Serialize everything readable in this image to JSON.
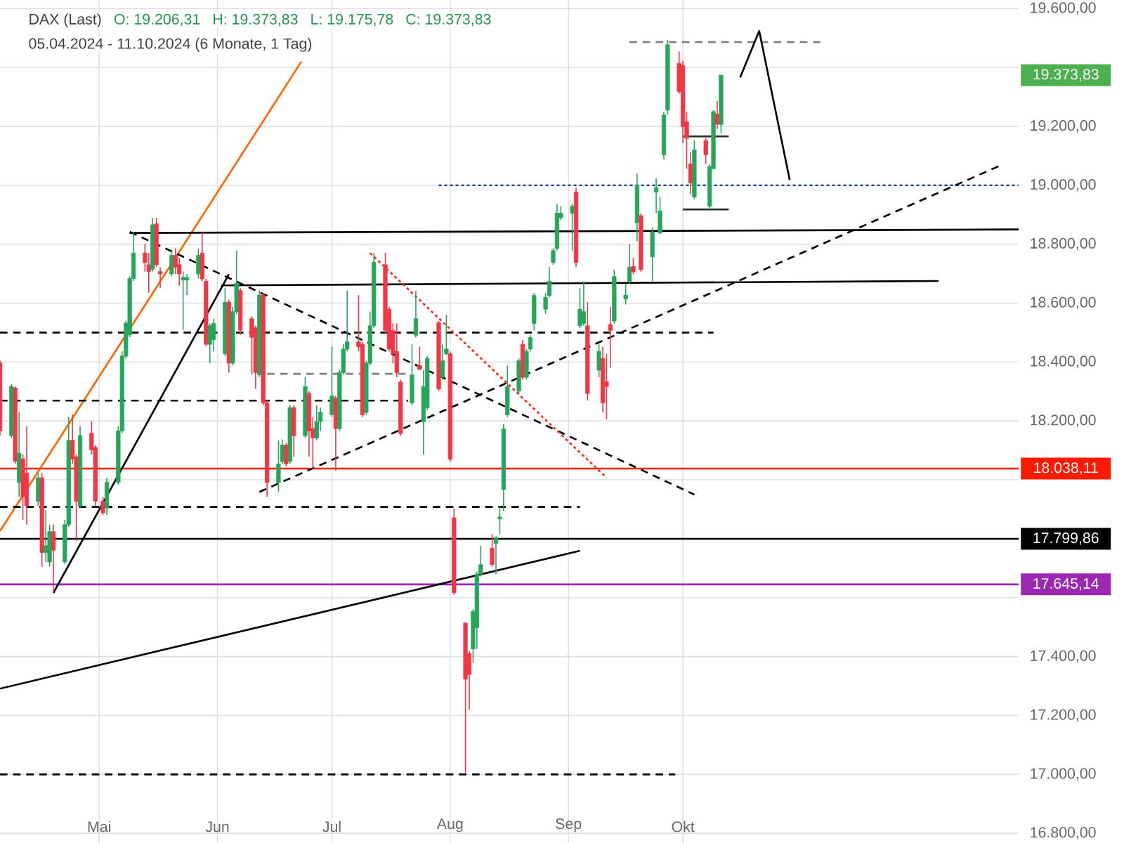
{
  "chart_data": {
    "type": "candlestick",
    "title": "DAX (Last)",
    "subtitle": "05.04.2024 - 11.10.2024  (6 Monate, 1 Tag)",
    "annotations": [
      "O: 19.206,31",
      "H: 19.373,83",
      "L: 19.175,78",
      "C: 19.373,83",
      "19.373,83"
    ],
    "x": [
      "2024-04-05",
      "2024-04-08",
      "2024-04-09",
      "2024-04-10",
      "2024-04-11",
      "2024-04-12",
      "2024-04-15",
      "2024-04-16",
      "2024-04-17",
      "2024-04-18",
      "2024-04-19",
      "2024-04-22",
      "2024-04-23",
      "2024-04-24",
      "2024-04-25",
      "2024-04-26",
      "2024-04-29",
      "2024-04-30",
      "2024-05-02",
      "2024-05-03",
      "2024-05-06",
      "2024-05-07",
      "2024-05-08",
      "2024-05-09",
      "2024-05-10",
      "2024-05-13",
      "2024-05-14",
      "2024-05-15",
      "2024-05-16",
      "2024-05-17",
      "2024-05-20",
      "2024-05-21",
      "2024-05-22",
      "2024-05-23",
      "2024-05-24",
      "2024-05-27",
      "2024-05-28",
      "2024-05-29",
      "2024-05-30",
      "2024-05-31",
      "2024-06-03",
      "2024-06-04",
      "2024-06-05",
      "2024-06-06",
      "2024-06-07",
      "2024-06-10",
      "2024-06-11",
      "2024-06-12",
      "2024-06-13",
      "2024-06-14",
      "2024-06-17",
      "2024-06-18",
      "2024-06-19",
      "2024-06-20",
      "2024-06-21",
      "2024-06-24",
      "2024-06-25",
      "2024-06-26",
      "2024-06-27",
      "2024-06-28",
      "2024-07-01",
      "2024-07-02",
      "2024-07-03",
      "2024-07-04",
      "2024-07-05",
      "2024-07-08",
      "2024-07-09",
      "2024-07-10",
      "2024-07-11",
      "2024-07-12",
      "2024-07-15",
      "2024-07-16",
      "2024-07-17",
      "2024-07-18",
      "2024-07-19",
      "2024-07-22",
      "2024-07-23",
      "2024-07-24",
      "2024-07-25",
      "2024-07-26",
      "2024-07-29",
      "2024-07-30",
      "2024-07-31",
      "2024-08-01",
      "2024-08-02",
      "2024-08-05",
      "2024-08-06",
      "2024-08-07",
      "2024-08-08",
      "2024-08-09",
      "2024-08-12",
      "2024-08-13",
      "2024-08-14",
      "2024-08-15",
      "2024-08-16",
      "2024-08-19",
      "2024-08-20",
      "2024-08-21",
      "2024-08-22",
      "2024-08-23",
      "2024-08-26",
      "2024-08-27",
      "2024-08-28",
      "2024-08-29",
      "2024-08-30",
      "2024-09-02",
      "2024-09-03",
      "2024-09-04",
      "2024-09-05",
      "2024-09-06",
      "2024-09-09",
      "2024-09-10",
      "2024-09-11",
      "2024-09-12",
      "2024-09-13",
      "2024-09-16",
      "2024-09-17",
      "2024-09-18",
      "2024-09-19",
      "2024-09-20",
      "2024-09-23",
      "2024-09-24",
      "2024-09-25",
      "2024-09-26",
      "2024-09-27",
      "2024-09-30",
      "2024-10-01",
      "2024-10-02",
      "2024-10-03",
      "2024-10-04",
      "2024-10-07",
      "2024-10-08",
      "2024-10-09",
      "2024-10-10",
      "2024-10-11"
    ],
    "ohlc": [
      [
        18397,
        18405,
        18150,
        18166
      ],
      [
        18150,
        18325,
        18142,
        18317
      ],
      [
        18312,
        18317,
        18055,
        18063
      ],
      [
        17991,
        18230,
        17943,
        18090
      ],
      [
        18071,
        18086,
        17864,
        17943
      ],
      [
        18023,
        18182,
        17848,
        17912
      ],
      [
        17927,
        18023,
        17912,
        18007
      ],
      [
        18007,
        18023,
        17705,
        17753
      ],
      [
        17753,
        17896,
        17721,
        17776
      ],
      [
        17721,
        17848,
        17705,
        17824
      ],
      [
        17824,
        17848,
        17617,
        17761
      ],
      [
        17721,
        17864,
        17713,
        17848
      ],
      [
        17848,
        18214,
        17840,
        18134
      ],
      [
        18134,
        18222,
        18055,
        18071
      ],
      [
        18078,
        18086,
        17792,
        17927
      ],
      [
        17912,
        18182,
        17904,
        18150
      ],
      [
        18158,
        18198,
        18086,
        18102
      ],
      [
        18110,
        18118,
        17912,
        17927
      ],
      [
        17927,
        17943,
        17880,
        17888
      ],
      [
        17904,
        18007,
        17880,
        17991
      ],
      [
        17991,
        18182,
        17983,
        18166
      ],
      [
        18166,
        18436,
        18158,
        18420
      ],
      [
        18420,
        18540,
        18412,
        18532
      ],
      [
        18492,
        18691,
        18484,
        18683
      ],
      [
        18683,
        18842,
        18675,
        18770
      ],
      [
        18770,
        18802,
        18707,
        18738
      ],
      [
        18730,
        18770,
        18635,
        18707
      ],
      [
        18715,
        18889,
        18707,
        18866
      ],
      [
        18869,
        18889,
        18722,
        18730
      ],
      [
        18707,
        18722,
        18651,
        18699
      ],
      [
        18699,
        18778,
        18691,
        18762
      ],
      [
        18762,
        18786,
        18699,
        18722
      ],
      [
        18730,
        18754,
        18659,
        18699
      ],
      [
        18678,
        18707,
        18508,
        18687
      ],
      [
        18678,
        18699,
        18627,
        18687
      ],
      [
        18699,
        18786,
        18683,
        18762
      ],
      [
        18770,
        18841,
        18674,
        18682
      ],
      [
        18674,
        18682,
        18452,
        18460
      ],
      [
        18460,
        18531,
        18396,
        18523
      ],
      [
        18476,
        18547,
        18436,
        18531
      ],
      [
        18428,
        18651,
        18420,
        18603
      ],
      [
        18603,
        18611,
        18364,
        18396
      ],
      [
        18396,
        18587,
        18388,
        18571
      ],
      [
        18571,
        18778,
        18563,
        18667
      ],
      [
        18643,
        18651,
        18492,
        18508
      ],
      [
        18547,
        18555,
        18357,
        18484
      ],
      [
        18516,
        18523,
        18309,
        18364
      ],
      [
        18357,
        18643,
        18349,
        18627
      ],
      [
        18627,
        18635,
        18253,
        18261
      ],
      [
        18261,
        18269,
        17943,
        17991
      ],
      [
        17991,
        18134,
        17959,
        18054
      ],
      [
        18062,
        18137,
        18054,
        18118
      ],
      [
        18118,
        18126,
        18046,
        18054
      ],
      [
        18062,
        18253,
        18054,
        18245
      ],
      [
        18245,
        18253,
        18078,
        18150
      ],
      [
        18150,
        18349,
        18142,
        18317
      ],
      [
        18293,
        18301,
        18078,
        18166
      ],
      [
        18174,
        18213,
        18038,
        18142
      ],
      [
        18142,
        18253,
        18134,
        18198
      ],
      [
        18198,
        18245,
        18166,
        18229
      ],
      [
        18221,
        18452,
        18213,
        18285
      ],
      [
        18277,
        18285,
        18031,
        18174
      ],
      [
        18174,
        18372,
        18166,
        18364
      ],
      [
        18364,
        18460,
        18357,
        18444
      ],
      [
        18444,
        18643,
        18436,
        18468
      ],
      [
        18468,
        18627,
        18436,
        18452
      ],
      [
        18460,
        18468,
        18213,
        18221
      ],
      [
        18229,
        18404,
        18221,
        18396
      ],
      [
        18396,
        18571,
        18388,
        18523
      ],
      [
        18523,
        18770,
        18516,
        18738
      ],
      [
        18730,
        18770,
        18499,
        18507
      ],
      [
        18579,
        18587,
        18436,
        18444
      ],
      [
        18507,
        18531,
        18396,
        18428
      ],
      [
        18436,
        18531,
        18348,
        18364
      ],
      [
        18332,
        18340,
        18149,
        18157
      ],
      [
        18261,
        18460,
        18253,
        18356
      ],
      [
        18491,
        18642,
        18483,
        18547
      ],
      [
        18388,
        18452,
        18372,
        18375
      ],
      [
        18197,
        18372,
        18086,
        18316
      ],
      [
        18245,
        18420,
        18237,
        18412
      ],
      [
        18534,
        18539,
        18301,
        18309
      ],
      [
        18348,
        18460,
        18340,
        18404
      ],
      [
        18428,
        18560,
        18423,
        18444
      ],
      [
        18428,
        18436,
        18062,
        18070
      ],
      [
        17871,
        17903,
        17609,
        17617
      ],
      [
        17514,
        17514,
        17005,
        17323
      ],
      [
        17410,
        17418,
        17219,
        17339
      ],
      [
        17426,
        17561,
        17378,
        17553
      ],
      [
        17498,
        17688,
        17426,
        17680
      ],
      [
        17680,
        17776,
        17672,
        17712
      ],
      [
        17768,
        17816,
        17704,
        17712
      ],
      [
        17784,
        17808,
        17680,
        17803
      ],
      [
        17868,
        17911,
        17816,
        17874
      ],
      [
        17967,
        18189,
        17895,
        18173
      ],
      [
        18221,
        18388,
        18213,
        18316
      ],
      [
        18301,
        18412,
        18293,
        18404
      ],
      [
        18460,
        18475,
        18340,
        18348
      ],
      [
        18348,
        18444,
        18340,
        18436
      ],
      [
        18444,
        18491,
        18436,
        18483
      ],
      [
        18531,
        18634,
        18507,
        18626
      ],
      [
        18579,
        18634,
        18563,
        18619
      ],
      [
        18626,
        18722,
        18619,
        18674
      ],
      [
        18738,
        18786,
        18730,
        18778
      ],
      [
        18786,
        18937,
        18778,
        18905
      ],
      [
        18889,
        18929,
        18881,
        18905
      ],
      [
        18905,
        18937,
        18778,
        18929
      ],
      [
        18977,
        18992,
        18722,
        18738
      ],
      [
        18523,
        18651,
        18515,
        18579
      ],
      [
        18531,
        18674,
        18523,
        18571
      ],
      [
        18523,
        18603,
        18269,
        18293
      ],
      [
        18372,
        18460,
        18348,
        18436
      ],
      [
        18412,
        18452,
        18229,
        18261
      ],
      [
        18333,
        18428,
        18205,
        18317
      ],
      [
        18527,
        18587,
        18380,
        18507
      ],
      [
        18539,
        18714,
        18531,
        18690
      ],
      [
        18614,
        18666,
        18595,
        18627
      ],
      [
        18674,
        18801,
        18666,
        18722
      ],
      [
        18725,
        18754,
        18698,
        18706
      ],
      [
        18873,
        19040,
        18810,
        19000
      ],
      [
        18897,
        18905,
        18706,
        18714
      ],
      [
        18757,
        18857,
        18674,
        18841
      ],
      [
        18977,
        19024,
        18905,
        18992
      ],
      [
        18838,
        18961,
        18833,
        18913
      ],
      [
        19104,
        19250,
        19088,
        19239
      ],
      [
        19255,
        19493,
        19239,
        19477
      ],
      [
        19414,
        19454,
        19310,
        19318
      ],
      [
        19406,
        19422,
        19143,
        19199
      ],
      [
        19215,
        19250,
        19056,
        19159
      ],
      [
        19072,
        19112,
        18969,
        19008
      ],
      [
        18961,
        19152,
        18953,
        19120
      ],
      [
        19152,
        19160,
        19072,
        19104
      ],
      [
        18929,
        19072,
        18913,
        19064
      ],
      [
        19056,
        19255,
        19056,
        19250
      ],
      [
        19242,
        19286,
        19191,
        19207
      ],
      [
        19206.31,
        19373.83,
        19175.78,
        19373.83
      ]
    ],
    "series": [
      {
        "type": "line",
        "color": "#ff6600",
        "line_style": "solid",
        "x": [
          "2024-04-05",
          "2024-06-23"
        ],
        "values": [
          17826,
          19420
        ]
      },
      {
        "type": "line",
        "color": "#000000",
        "line_style": "solid",
        "x": [
          "2024-04-19",
          "2024-06-04"
        ],
        "values": [
          17616,
          18698
        ]
      },
      {
        "type": "line",
        "color": "#000000",
        "line_style": "solid",
        "x": [
          "2024-04-05",
          "2024-09-04"
        ],
        "values": [
          17291,
          17759
        ]
      },
      {
        "type": "line",
        "color": "#000000",
        "line_style": "dashed",
        "x": [
          "2024-04-05",
          "2024-10-09"
        ],
        "values": [
          18500,
          18500
        ]
      },
      {
        "type": "line",
        "color": "#1a3a9c",
        "line_style": "dotted",
        "x": [
          "2024-07-29",
          "2024-12-28"
        ],
        "values": [
          19000,
          19000
        ]
      },
      {
        "type": "line",
        "color": "#808080",
        "line_style": "dashed",
        "x": [
          "2024-09-17",
          "2024-11-06"
        ],
        "values": [
          19486,
          19486
        ]
      },
      {
        "type": "line",
        "color": "#000000",
        "line_style": "solid",
        "x": [
          "2024-05-09",
          "2024-12-28"
        ],
        "values": [
          18838,
          18850
        ]
      },
      {
        "type": "line",
        "color": "#000000",
        "line_style": "solid",
        "x": [
          "2024-06-02",
          "2024-12-07"
        ],
        "values": [
          18660,
          18675
        ]
      },
      {
        "type": "line",
        "color": "#000000",
        "line_style": "dashed",
        "x": [
          "2024-05-09",
          "2024-10-04"
        ],
        "values": [
          18842,
          17950
        ]
      },
      {
        "type": "line",
        "color": "#ff2a1a",
        "line_style": "dotted",
        "x": [
          "2024-07-11",
          "2024-09-11"
        ],
        "values": [
          18770,
          18007
        ]
      },
      {
        "type": "line",
        "color": "#000000",
        "line_style": "dashed",
        "x": [
          "2024-06-12",
          "2024-12-23"
        ],
        "values": [
          17959,
          19066
        ]
      },
      {
        "type": "line",
        "color": "#000000",
        "line_style": "dashed",
        "x": [
          "2024-04-05",
          "2024-07-21"
        ],
        "values": [
          18269,
          18269
        ]
      },
      {
        "type": "line",
        "color": "#808080",
        "line_style": "dashed",
        "x": [
          "2024-06-14",
          "2024-07-21"
        ],
        "values": [
          18360,
          18360
        ]
      },
      {
        "type": "line",
        "color": "#000000",
        "line_style": "dashed",
        "x": [
          "2024-04-05",
          "2024-09-04"
        ],
        "values": [
          17908,
          17908
        ]
      },
      {
        "type": "line",
        "color": "#000000",
        "line_style": "dashed",
        "x": [
          "2024-04-05",
          "2024-09-29"
        ],
        "values": [
          17000,
          17000
        ]
      },
      {
        "type": "line",
        "color": "#303030",
        "line_style": "solid",
        "x": [
          "2024-10-01",
          "2024-10-13"
        ],
        "values": [
          19166,
          19166
        ]
      },
      {
        "type": "line",
        "color": "#303030",
        "line_style": "solid",
        "x": [
          "2024-10-01",
          "2024-10-13"
        ],
        "values": [
          18918,
          18918
        ]
      },
      {
        "type": "line",
        "color": "#000000",
        "line_style": "solid",
        "x": [
          "2024-10-16",
          "2024-10-21",
          "2024-10-29"
        ],
        "values": [
          19366,
          19524,
          19018
        ]
      }
    ],
    "ref_lines": [
      {
        "axis": "y",
        "value": 18038.11,
        "label": "18.038,11",
        "color": "#ff1a00",
        "line_style": "solid"
      },
      {
        "axis": "y",
        "value": 17799.86,
        "label": "17.799,86",
        "color": "#000000",
        "line_style": "solid"
      },
      {
        "axis": "y",
        "value": 17645.14,
        "label": "17.645,14",
        "color": "#9c27b0",
        "line_style": "solid"
      }
    ],
    "xlim": [
      "2024-04-05",
      "2024-12-28"
    ],
    "xticks": [
      {
        "value": "2024-05-01",
        "label": "Mai"
      },
      {
        "value": "2024-06-01",
        "label": "Jun"
      },
      {
        "value": "2024-07-01",
        "label": "Jul"
      },
      {
        "value": "2024-08-01",
        "label": "Aug"
      },
      {
        "value": "2024-09-01",
        "label": "Sep"
      },
      {
        "value": "2024-10-01",
        "label": "Okt"
      }
    ],
    "ylim": [
      16767,
      19629
    ],
    "yticks": [
      {
        "value": 16800,
        "label": "16.800,00"
      },
      {
        "value": 17000,
        "label": "17.000,00"
      },
      {
        "value": 17200,
        "label": "17.200,00"
      },
      {
        "value": 17400,
        "label": "17.400,00"
      },
      {
        "value": 17600,
        "label": null
      },
      {
        "value": 17800,
        "label": null
      },
      {
        "value": 18000,
        "label": null
      },
      {
        "value": 18200,
        "label": "18.200,00"
      },
      {
        "value": 18400,
        "label": "18.400,00"
      },
      {
        "value": 18600,
        "label": "18.600,00"
      },
      {
        "value": 18800,
        "label": "18.800,00"
      },
      {
        "value": 19000,
        "label": "19.000,00"
      },
      {
        "value": 19200,
        "label": "19.200,00"
      },
      {
        "value": 19400,
        "label": null
      },
      {
        "value": 19600,
        "label": "19.600,00"
      }
    ],
    "grid": true
  }
}
